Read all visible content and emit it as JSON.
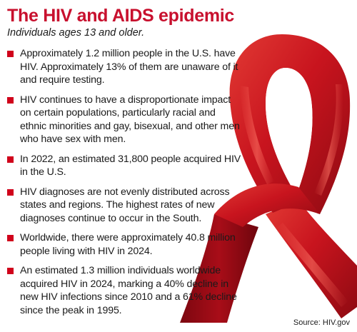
{
  "header": {
    "title": "The HIV and AIDS epidemic",
    "subtitle": "Individuals ages 13 and older."
  },
  "bullets": [
    {
      "text": "Approximately 1.2 million people in the U.S. have HIV. Approximately 13% of them are unaware of it and require testing."
    },
    {
      "text": "HIV continues to have a disproportionate impact on certain populations, particularly racial and ethnic minorities and gay, bisexual, and other men who have sex with men."
    },
    {
      "text": "In 2022, an estimated 31,800 people acquired HIV in the U.S."
    },
    {
      "text": "HIV diagnoses are not evenly distributed across states and regions. The highest rates of new diagnoses continue to occur in the South."
    },
    {
      "text": "Worldwide, there were approximately 40.8 million people living with HIV in 2024."
    },
    {
      "text": "An estimated 1.3 million individuals worldwide acquired HIV in 2024, marking a 40% decline in new HIV infections since 2010 and a 61% decline since the peak in 1995."
    }
  ],
  "footer": {
    "source": "Source: HIV.gov"
  },
  "colors": {
    "title": "#c8102e",
    "bullet_marker": "#d0021b",
    "ribbon": "#c8141e"
  },
  "decoration": {
    "image": "red-awareness-ribbon"
  }
}
